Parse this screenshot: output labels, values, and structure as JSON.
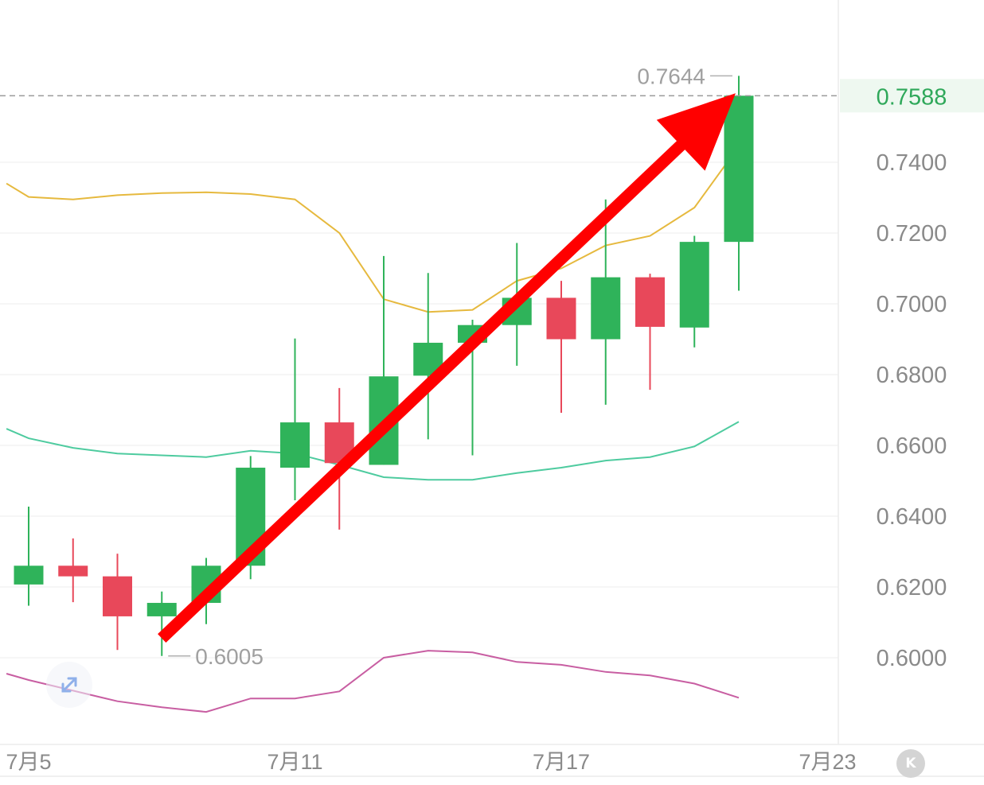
{
  "chart_data": {
    "type": "candlestick",
    "y_ticks": [
      "0.7400",
      "0.7200",
      "0.7000",
      "0.6800",
      "0.6600",
      "0.6400",
      "0.6200",
      "0.6000"
    ],
    "x_ticks": [
      {
        "day": 0,
        "label": "7月5"
      },
      {
        "day": 6,
        "label": "7月11"
      },
      {
        "day": 12,
        "label": "7月17"
      },
      {
        "day": 18,
        "label": "7月23"
      }
    ],
    "ylim": [
      0.5807,
      0.7867
    ],
    "grid": true,
    "candles": [
      {
        "day": 0,
        "open": 0.6207,
        "high": 0.6427,
        "low": 0.6147,
        "close": 0.626,
        "dir": "up"
      },
      {
        "day": 1,
        "open": 0.626,
        "high": 0.6337,
        "low": 0.6157,
        "close": 0.623,
        "dir": "down"
      },
      {
        "day": 2,
        "open": 0.623,
        "high": 0.6294,
        "low": 0.6022,
        "close": 0.6117,
        "dir": "down"
      },
      {
        "day": 3,
        "open": 0.6117,
        "high": 0.6187,
        "low": 0.6005,
        "close": 0.6155,
        "dir": "up"
      },
      {
        "day": 4,
        "open": 0.6155,
        "high": 0.6282,
        "low": 0.6095,
        "close": 0.626,
        "dir": "up"
      },
      {
        "day": 5,
        "open": 0.626,
        "high": 0.657,
        "low": 0.6222,
        "close": 0.6537,
        "dir": "up"
      },
      {
        "day": 6,
        "open": 0.6537,
        "high": 0.6902,
        "low": 0.6445,
        "close": 0.6665,
        "dir": "up"
      },
      {
        "day": 7,
        "open": 0.6665,
        "high": 0.6762,
        "low": 0.6362,
        "close": 0.655,
        "dir": "down"
      },
      {
        "day": 8,
        "open": 0.6545,
        "high": 0.7135,
        "low": 0.6545,
        "close": 0.6795,
        "dir": "up"
      },
      {
        "day": 9,
        "open": 0.6797,
        "high": 0.7087,
        "low": 0.6617,
        "close": 0.689,
        "dir": "up"
      },
      {
        "day": 10,
        "open": 0.689,
        "high": 0.6955,
        "low": 0.6572,
        "close": 0.694,
        "dir": "up"
      },
      {
        "day": 11,
        "open": 0.694,
        "high": 0.7172,
        "low": 0.6825,
        "close": 0.7017,
        "dir": "up"
      },
      {
        "day": 12,
        "open": 0.7017,
        "high": 0.7065,
        "low": 0.6692,
        "close": 0.69,
        "dir": "down"
      },
      {
        "day": 13,
        "open": 0.69,
        "high": 0.7295,
        "low": 0.6715,
        "close": 0.7075,
        "dir": "up"
      },
      {
        "day": 14,
        "open": 0.7075,
        "high": 0.7085,
        "low": 0.6757,
        "close": 0.6935,
        "dir": "down"
      },
      {
        "day": 15,
        "open": 0.6933,
        "high": 0.7192,
        "low": 0.6877,
        "close": 0.7175,
        "dir": "up"
      },
      {
        "day": 16,
        "open": 0.7175,
        "high": 0.7644,
        "low": 0.7037,
        "close": 0.7588,
        "dir": "up"
      }
    ],
    "bands": {
      "upper": {
        "color": "#e6b93e",
        "days": [
          -0.5,
          0,
          1,
          2,
          3,
          4,
          5,
          6,
          7,
          8,
          9,
          10,
          11,
          12,
          13,
          14,
          15,
          16
        ],
        "values": [
          0.734,
          0.7302,
          0.7295,
          0.7307,
          0.7313,
          0.7315,
          0.731,
          0.7295,
          0.72,
          0.7013,
          0.6977,
          0.6983,
          0.7065,
          0.71,
          0.7165,
          0.7192,
          0.7272,
          0.7445
        ]
      },
      "middle": {
        "color": "#4ecb9f",
        "days": [
          -0.5,
          0,
          1,
          2,
          3,
          4,
          5,
          6,
          7,
          8,
          9,
          10,
          11,
          12,
          13,
          14,
          15,
          16
        ],
        "values": [
          0.6647,
          0.662,
          0.6593,
          0.6577,
          0.6572,
          0.6567,
          0.6585,
          0.6577,
          0.6545,
          0.651,
          0.6503,
          0.6503,
          0.6522,
          0.6537,
          0.6557,
          0.6567,
          0.6597,
          0.6667
        ]
      },
      "lower": {
        "color": "#c85ea2",
        "days": [
          -0.5,
          0,
          1,
          2,
          3,
          4,
          5,
          6,
          7,
          8,
          9,
          10,
          11,
          12,
          13,
          14,
          15,
          16
        ],
        "values": [
          0.5955,
          0.5937,
          0.5907,
          0.5877,
          0.586,
          0.5847,
          0.5885,
          0.5885,
          0.5905,
          0.6,
          0.602,
          0.6015,
          0.5988,
          0.598,
          0.596,
          0.595,
          0.5927,
          0.5887
        ]
      }
    },
    "current_price": {
      "value": 0.7588,
      "label": "0.7588"
    },
    "high_marker": {
      "value": 0.7644,
      "day": 16,
      "label": "0.7644"
    },
    "low_marker": {
      "value": 0.6005,
      "day": 3,
      "label": "0.6005"
    },
    "trend_arrow": {
      "from": {
        "day": 3,
        "value": 0.6055
      },
      "to": {
        "day": 16,
        "value": 0.7595
      },
      "color": "#ff0000"
    }
  },
  "colors": {
    "up": "#2fb35a",
    "down": "#e8485a",
    "grid": "#ececec",
    "axis_text": "#8a8a8a",
    "price_text": "#2fa85a",
    "price_bg": "#eef8f0"
  },
  "controls": {
    "expand_icon": "expand-arrows-icon",
    "k_button": "K"
  }
}
